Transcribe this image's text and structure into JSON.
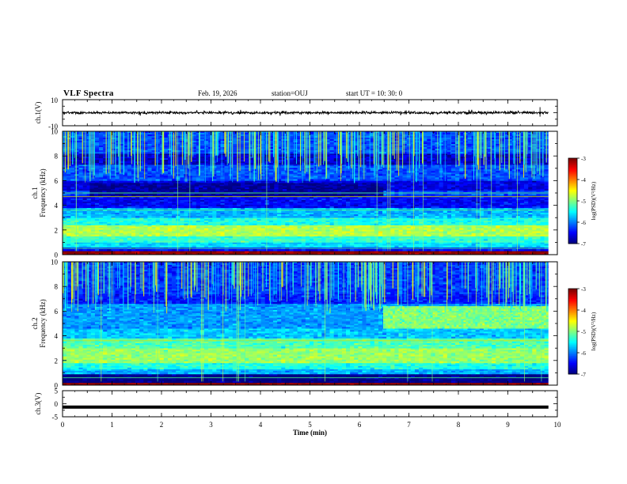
{
  "header": {
    "title": "VLF Spectra",
    "date": "Feb. 19, 2026",
    "station": "station=OUJ",
    "start_ut": "start  UT =    10: 30: 0"
  },
  "chart_data": [
    {
      "type": "line",
      "panel": "ch1-waveform",
      "ylabel": "ch.1(V)",
      "ylim": [
        -10,
        10
      ],
      "yticks": [
        "10",
        "-10"
      ],
      "baseline": 0,
      "note": "broadband noise waveform, amplitude about +/-1 V"
    },
    {
      "type": "heatmap",
      "panel": "ch1-spectrogram",
      "ylabel": "ch.1",
      "ylabel2": "Frequency  (kHz)",
      "ylim": [
        0,
        10
      ],
      "yticks": [
        "0",
        "2",
        "4",
        "6",
        "8",
        "10"
      ],
      "xlim": [
        0,
        10
      ],
      "data_end_min": 9.82,
      "bands": [
        {
          "from": 0,
          "to": 0.3,
          "level": -3.0
        },
        {
          "from": 0.3,
          "to": 0.6,
          "level": -6.5
        },
        {
          "from": 0.6,
          "to": 1.0,
          "level": -5.6
        },
        {
          "from": 1.0,
          "to": 1.5,
          "level": -5.3
        },
        {
          "from": 1.5,
          "to": 2.4,
          "level": -4.8
        },
        {
          "from": 2.4,
          "to": 3.0,
          "level": -5.4
        },
        {
          "from": 3.0,
          "to": 3.8,
          "level": -5.8
        },
        {
          "from": 3.8,
          "to": 4.8,
          "level": -6.5
        },
        {
          "from": 4.8,
          "to": 5.2,
          "level": -6.2
        },
        {
          "from": 5.2,
          "to": 6.0,
          "level": -6.6
        },
        {
          "from": 6.0,
          "to": 7.3,
          "level": -6.2
        },
        {
          "from": 7.3,
          "to": 8.2,
          "level": -6.7
        },
        {
          "from": 8.2,
          "to": 10.0,
          "level": -6.2
        }
      ],
      "quiet_block": {
        "t_from": 0.55,
        "t_to": 6.48,
        "f_from": 4.7,
        "f_to": 5.8,
        "level": -6.9
      },
      "tones_khz": [
        4.7,
        5.0,
        3.6,
        0.5
      ]
    },
    {
      "type": "heatmap",
      "panel": "ch2-spectrogram",
      "ylabel": "ch.2",
      "ylabel2": "Frequency  (kHz)",
      "ylim": [
        0,
        10
      ],
      "yticks": [
        "0",
        "2",
        "4",
        "6",
        "8",
        "10"
      ],
      "xlim": [
        0,
        10
      ],
      "data_end_min": 9.82,
      "bands": [
        {
          "from": 0,
          "to": 0.2,
          "level": -3.0
        },
        {
          "from": 0.2,
          "to": 0.9,
          "level": -7.0
        },
        {
          "from": 0.9,
          "to": 1.3,
          "level": -5.8
        },
        {
          "from": 1.3,
          "to": 1.8,
          "level": -5.4
        },
        {
          "from": 1.8,
          "to": 3.0,
          "level": -4.9
        },
        {
          "from": 3.0,
          "to": 3.8,
          "level": -5.2
        },
        {
          "from": 3.8,
          "to": 4.6,
          "level": -5.7
        },
        {
          "from": 4.6,
          "to": 6.6,
          "level": -5.9
        },
        {
          "from": 6.6,
          "to": 7.4,
          "level": -6.4
        },
        {
          "from": 7.4,
          "to": 10.0,
          "level": -6.3
        }
      ],
      "enhanced_block": {
        "t_from": 6.48,
        "t_to": 9.82,
        "f_from": 4.6,
        "f_to": 6.4,
        "level": -5.0
      },
      "tones_khz": [
        3.6,
        0.6
      ]
    },
    {
      "type": "line",
      "panel": "ch3-waveform",
      "ylabel": "ch.3(V)",
      "ylim": [
        -5,
        5
      ],
      "yticks": [
        "5",
        "0",
        "-5"
      ],
      "baseline": -1.3
    }
  ],
  "colorbar": {
    "label": "log(PSD)(V²/Hz)",
    "range": [
      -7,
      -3
    ],
    "ticks": [
      "-3",
      "-4",
      "-5",
      "-6",
      "-7"
    ]
  },
  "time_axis": {
    "label": "Time  (min)",
    "ticks": [
      "0",
      "1",
      "2",
      "3",
      "4",
      "5",
      "6",
      "7",
      "8",
      "9",
      "10"
    ],
    "range": [
      0,
      10
    ]
  }
}
